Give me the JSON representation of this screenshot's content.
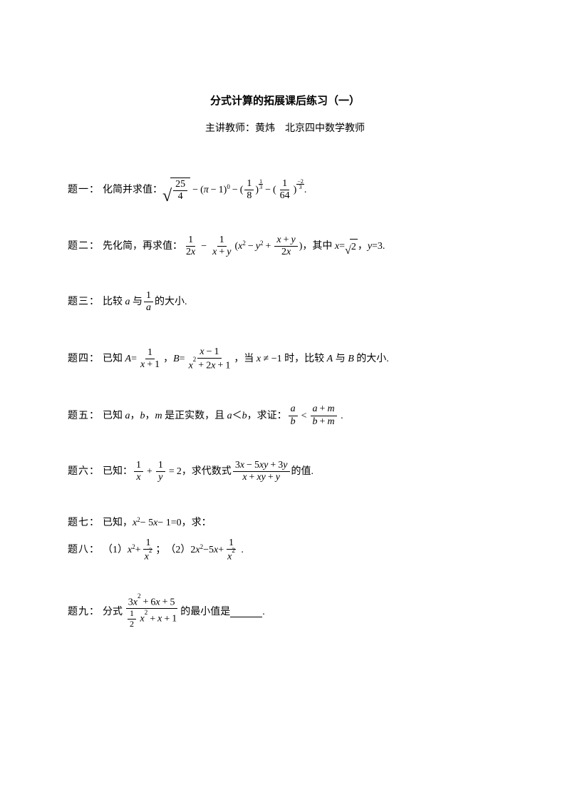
{
  "title": "分式计算的拓展课后练习（一）",
  "subtitle": "主讲教师：黄炜　北京四中数学教师",
  "p1_label": "题一：",
  "p1_text": "化简并求值：",
  "p2_label": "题二：",
  "p2_text1": "先化简，再求值：",
  "p2_text2": "，其中",
  "p2_text3": "，",
  "p3_label": "题三：",
  "p3_text1": "比较",
  "p3_text2": "与",
  "p3_text3": "的大小.",
  "p4_label": "题四：",
  "p4_text1": "已知",
  "p4_text2": "，",
  "p4_text3": "，当",
  "p4_text4": "≠ −1 时，比较",
  "p4_text5": "与",
  "p4_text6": "的大小.",
  "p5_label": "题五：",
  "p5_text1": "已知",
  "p5_text2": "，",
  "p5_text3": "，",
  "p5_text4": "是正实数，且",
  "p5_text5": "＜",
  "p5_text6": "，求证：",
  "p6_label": "题六：",
  "p6_text1": "已知：",
  "p6_text2": "，求代数式",
  "p6_text3": "的值.",
  "p7_label": "题七：",
  "p7_text": "已知，",
  "p7_eq": "− 5",
  "p7_eq2": "− 1=0，求：",
  "p8_label": "题八：",
  "p8_1": "（1）",
  "p8_2": "；　（2）2",
  "p8_3": "−5",
  "p8_4": "+",
  "p9_label": "题九：",
  "p9_text1": "分式",
  "p9_text2": "的最小值是",
  "var_a": "a",
  "var_b": "b",
  "var_m": "m",
  "var_x": "x",
  "var_y": "y",
  "var_A": "A",
  "var_B": "B",
  "period": ".",
  "eq": "=",
  "plus": "+",
  "minus": "−",
  "lt": "<",
  "num_1": "1",
  "num_2": "2",
  "num_3": "3",
  "num_5": "5",
  "num_6": "6",
  "num_25": "25",
  "num_4": "4",
  "num_8": "8",
  "num_64": "64",
  "pi": "π",
  "x2": "x",
  "y2": "y",
  "ysq": "2",
  "val3": "=3.",
  "sqrt2": "2",
  "q7_x2": "x",
  "q7_sup2": "2"
}
